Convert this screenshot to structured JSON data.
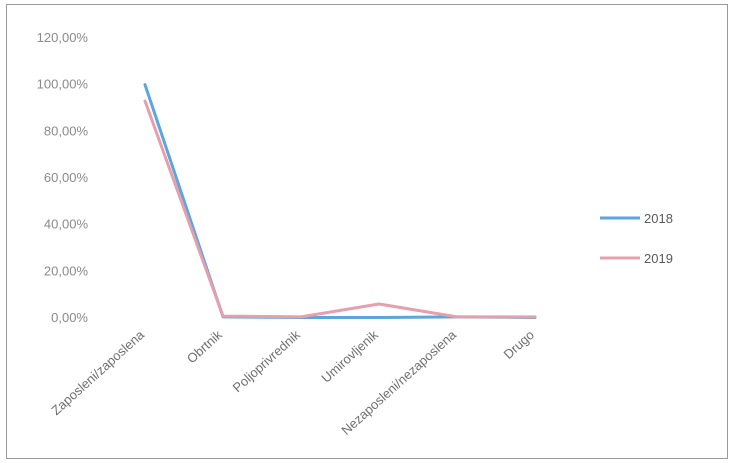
{
  "chart_data": {
    "type": "line",
    "categories": [
      "Zaposleni/zaposlena",
      "Obrtnik",
      "Poljoprivrednik",
      "Umirovljenik",
      "Nezaposleni/nezaposlena",
      "Drugo"
    ],
    "ylim": [
      0,
      120
    ],
    "yticks": [
      "0,00%",
      "20,00%",
      "40,00%",
      "60,00%",
      "80,00%",
      "100,00%",
      "120,00%"
    ],
    "ytick_values": [
      0,
      20,
      40,
      60,
      80,
      100,
      120
    ],
    "grid": false,
    "legend_position": "right",
    "series": [
      {
        "name": "2018",
        "color": "#5aa6dd",
        "values": [
          100,
          0.5,
          0.2,
          0.2,
          0.5,
          0.2
        ]
      },
      {
        "name": "2019",
        "color": "#e4a0ac",
        "values": [
          93,
          0.8,
          0.5,
          6,
          0.5,
          0.5
        ]
      }
    ]
  }
}
